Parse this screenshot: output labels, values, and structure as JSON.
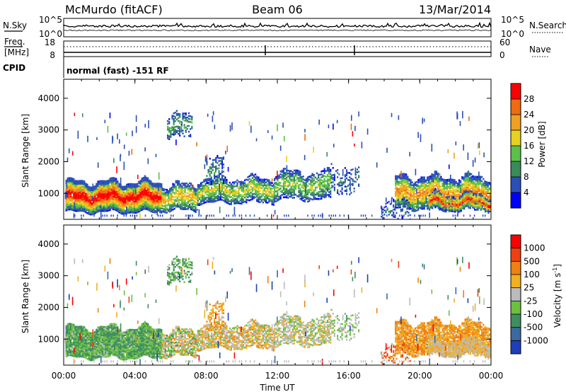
{
  "header": {
    "station": "McMurdo (fitACF)",
    "beam": "Beam 06",
    "date": "13/Mar/2014"
  },
  "status_panel": {
    "nsky_label": "N.Sky",
    "nsearch_label": "N.Search",
    "freq_label": "Freq.",
    "freq_unit": "[MHz]",
    "nave_label": "Nave",
    "cpid_label": "CPID",
    "cpid_text": "normal (fast) -151 RF",
    "noise_ticks": [
      "10^5",
      "10^0"
    ],
    "noise_ticks_right": [
      "10^5",
      "10^0"
    ],
    "freq_ticks": [
      "18",
      "8"
    ],
    "nave_ticks": [
      "60",
      "0"
    ]
  },
  "chart_data": [
    {
      "type": "heatmap",
      "panel": "power",
      "xlabel": "",
      "ylabel": "Slant Range [km]",
      "x_range": [
        "00:00",
        "24:00"
      ],
      "ylim": [
        180,
        4600
      ],
      "yticks": [
        "1000",
        "2000",
        "3000",
        "4000"
      ],
      "colorbar_label": "Power [dB]",
      "colorbar_ticks": [
        "4",
        "8",
        "12",
        "16",
        "20",
        "24",
        "28"
      ],
      "colorbar_colors": [
        "#0000ff",
        "#2a4fb8",
        "#3a8a5a",
        "#5cc04a",
        "#e8d020",
        "#f0a020",
        "#f06a10",
        "#ff0000"
      ]
    },
    {
      "type": "heatmap",
      "panel": "velocity",
      "xlabel": "Time UT",
      "ylabel": "Slant Range [km]",
      "x_range": [
        "00:00",
        "24:00"
      ],
      "ylim": [
        180,
        4600
      ],
      "xticks": [
        "00:00",
        "04:00",
        "08:00",
        "12:00",
        "16:00",
        "20:00",
        "00:00"
      ],
      "yticks": [
        "1000",
        "2000",
        "3000",
        "4000"
      ],
      "colorbar_label": "Velocity [m s-1]",
      "colorbar_label_main": "Velocity ",
      "colorbar_label_unit": "[m s",
      "colorbar_label_exp": "-1",
      "colorbar_label_close": "]",
      "colorbar_ticks": [
        "1000",
        "500",
        "100",
        "25",
        "-25",
        "-100",
        "-500",
        "-1000"
      ],
      "colorbar_colors": [
        "#1d3fb8",
        "#3a6aa0",
        "#3e8e60",
        "#6cc040",
        "#bbbbbb",
        "#f0b020",
        "#f08010",
        "#f04010",
        "#ff0000"
      ]
    }
  ]
}
